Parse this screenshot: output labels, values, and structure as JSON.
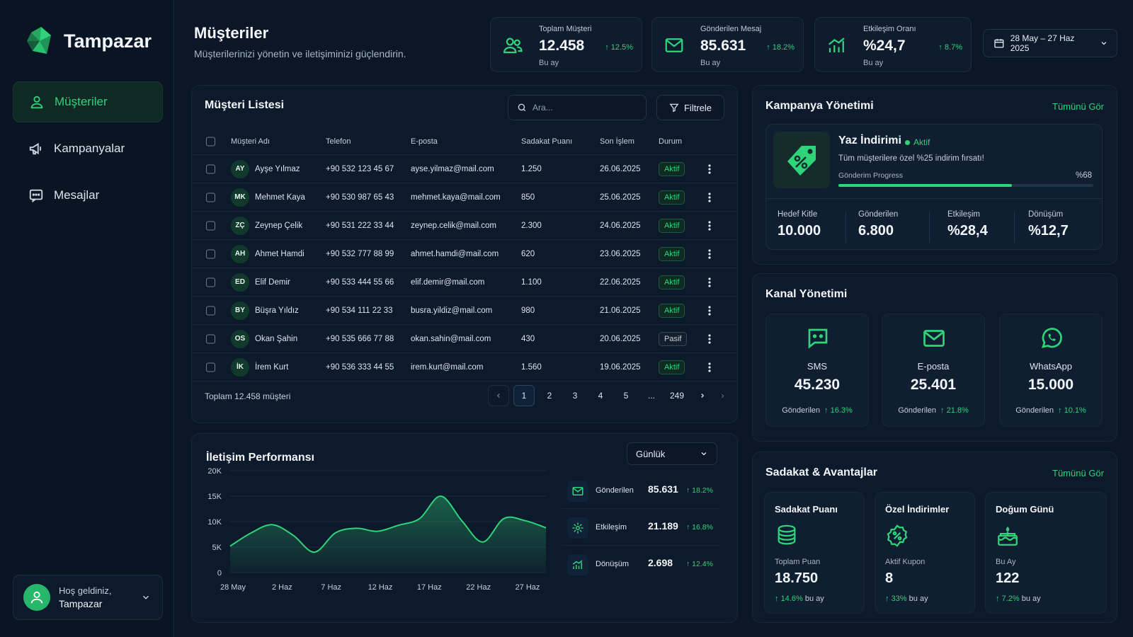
{
  "brand": {
    "name": "Tampazar",
    "accent": "#2fd37a",
    "background": "#0b1626"
  },
  "sidebar": {
    "items": [
      {
        "label": "Müşteriler",
        "icon": "user-icon",
        "active": true
      },
      {
        "label": "Kampanyalar",
        "icon": "megaphone-icon",
        "active": false
      },
      {
        "label": "Mesajlar",
        "icon": "message-icon",
        "active": false
      }
    ],
    "user": {
      "greeting": "Hoş geldiniz,",
      "name": "Tampazar"
    }
  },
  "header": {
    "title": "Müşteriler",
    "subtitle": "Müşterilerinizi yönetin ve iletişiminizi güçlendirin.",
    "date_range": "28 May – 27 Haz 2025"
  },
  "stats": [
    {
      "label": "Toplam Müşteri",
      "value": "12.458",
      "sub": "Bu ay",
      "change": "12.5%",
      "icon": "users-icon"
    },
    {
      "label": "Gönderilen Mesaj",
      "value": "85.631",
      "sub": "Bu ay",
      "change": "18.2%",
      "icon": "mail-icon"
    },
    {
      "label": "Etkileşim Oranı",
      "value": "%24,7",
      "sub": "Bu ay",
      "change": "8.7%",
      "icon": "bar-chart-icon"
    }
  ],
  "customers": {
    "title": "Müşteri Listesi",
    "search_placeholder": "Ara...",
    "filter_label": "Filtrele",
    "columns": [
      "Müşteri Adı",
      "Telefon",
      "E-posta",
      "Sadakat Puanı",
      "Son İşlem",
      "Durum"
    ],
    "rows": [
      {
        "initials": "AY",
        "name": "Ayşe Yılmaz",
        "phone": "+90 532 123 45 67",
        "email": "ayse.yilmaz@mail.com",
        "points": "1.250",
        "date": "26.06.2025",
        "status": "Aktif"
      },
      {
        "initials": "MK",
        "name": "Mehmet Kaya",
        "phone": "+90 530 987 65 43",
        "email": "mehmet.kaya@mail.com",
        "points": "850",
        "date": "25.06.2025",
        "status": "Aktif"
      },
      {
        "initials": "ZÇ",
        "name": "Zeynep Çelik",
        "phone": "+90 531 222 33 44",
        "email": "zeynep.celik@mail.com",
        "points": "2.300",
        "date": "24.06.2025",
        "status": "Aktif"
      },
      {
        "initials": "AH",
        "name": "Ahmet Hamdi",
        "phone": "+90 532 777 88 99",
        "email": "ahmet.hamdi@mail.com",
        "points": "620",
        "date": "23.06.2025",
        "status": "Aktif"
      },
      {
        "initials": "ED",
        "name": "Elif Demir",
        "phone": "+90 533 444 55 66",
        "email": "elif.demir@mail.com",
        "points": "1.100",
        "date": "22.06.2025",
        "status": "Aktif"
      },
      {
        "initials": "BY",
        "name": "Büşra Yıldız",
        "phone": "+90 534 111 22 33",
        "email": "busra.yildiz@mail.com",
        "points": "980",
        "date": "21.06.2025",
        "status": "Aktif"
      },
      {
        "initials": "OS",
        "name": "Okan Şahin",
        "phone": "+90 535 666 77 88",
        "email": "okan.sahin@mail.com",
        "points": "430",
        "date": "20.06.2025",
        "status": "Pasif"
      },
      {
        "initials": "İK",
        "name": "İrem Kurt",
        "phone": "+90 536 333 44 55",
        "email": "irem.kurt@mail.com",
        "points": "1.560",
        "date": "19.06.2025",
        "status": "Aktif"
      }
    ],
    "total_text": "Toplam 12.458 müşteri",
    "pages": [
      "1",
      "2",
      "3",
      "4",
      "5",
      "...",
      "249"
    ],
    "current_page": "1"
  },
  "performance": {
    "title": "İletişim Performansı",
    "period": "Günlük",
    "list": [
      {
        "label": "Gönderilen",
        "value": "85.631",
        "change": "18.2%",
        "icon": "mail-icon"
      },
      {
        "label": "Etkileşim",
        "value": "21.189",
        "change": "16.8%",
        "icon": "interaction-icon"
      },
      {
        "label": "Dönüşüm",
        "value": "2.698",
        "change": "12.4%",
        "icon": "bar-chart-icon"
      }
    ]
  },
  "chart_data": {
    "type": "area",
    "x_ticks": [
      "28 May",
      "2 Haz",
      "7 Haz",
      "12 Haz",
      "17 Haz",
      "22 Haz",
      "27 Haz"
    ],
    "y_ticks": [
      "0",
      "5K",
      "10K",
      "15K",
      "20K"
    ],
    "ylim": [
      0,
      20000
    ],
    "x": [
      "28 May",
      "30 May",
      "2 Haz",
      "4 Haz",
      "6 Haz",
      "8 Haz",
      "10 Haz",
      "12 Haz",
      "14 Haz",
      "15 Haz",
      "17 Haz",
      "19 Haz",
      "21 Haz",
      "23 Haz",
      "25 Haz",
      "27 Haz"
    ],
    "values": [
      5200,
      7800,
      9400,
      7300,
      4000,
      7800,
      8700,
      8100,
      9300,
      10600,
      15000,
      10200,
      6000,
      10600,
      10200,
      8800
    ],
    "color": "#2fd37a",
    "grid": true
  },
  "campaign": {
    "title": "Kampanya Yönetimi",
    "see_all": "Tümünü Gör",
    "name": "Yaz İndirimi",
    "status": "Aktif",
    "description": "Tüm müşterilere özel %25 indirim fırsatı!",
    "progress_label": "Gönderim Progress",
    "progress_text": "%68",
    "progress": 0.68,
    "metrics": [
      {
        "label": "Hedef Kitle",
        "value": "10.000"
      },
      {
        "label": "Gönderilen",
        "value": "6.800"
      },
      {
        "label": "Etkileşim",
        "value": "%28,4"
      },
      {
        "label": "Dönüşüm",
        "value": "%12,7"
      }
    ]
  },
  "channels": {
    "title": "Kanal Yönetimi",
    "items": [
      {
        "name": "SMS",
        "value": "45.230",
        "sub": "Gönderilen",
        "change": "16.3%",
        "icon": "sms-icon"
      },
      {
        "name": "E-posta",
        "value": "25.401",
        "sub": "Gönderilen",
        "change": "21.8%",
        "icon": "mail-icon"
      },
      {
        "name": "WhatsApp",
        "value": "15.000",
        "sub": "Gönderilen",
        "change": "10.1%",
        "icon": "whatsapp-icon"
      }
    ]
  },
  "loyalty": {
    "title": "Sadakat & Avantajlar",
    "see_all": "Tümünü Gör",
    "items": [
      {
        "title": "Sadakat Puanı",
        "label": "Toplam Puan",
        "value": "18.750",
        "change": "14.6%",
        "suffix": "bu ay",
        "icon": "coins-icon"
      },
      {
        "title": "Özel İndirimler",
        "label": "Aktif Kupon",
        "value": "8",
        "change": "33%",
        "suffix": "bu ay",
        "icon": "discount-icon"
      },
      {
        "title": "Doğum Günü",
        "label": "Bu Ay",
        "value": "122",
        "change": "7.2%",
        "suffix": "bu ay",
        "icon": "cake-icon"
      }
    ]
  }
}
